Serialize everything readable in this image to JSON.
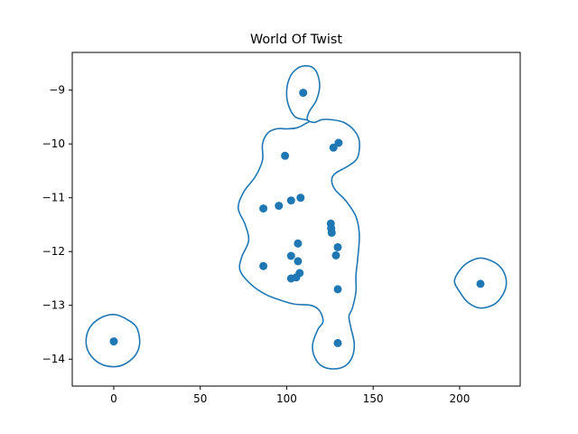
{
  "chart_data": {
    "type": "scatter",
    "title": "World Of Twist",
    "xlabel": "",
    "ylabel": "",
    "xlim": [
      -24,
      235
    ],
    "ylim": [
      -14.5,
      -8.3
    ],
    "xticks": [
      0,
      50,
      100,
      150,
      200
    ],
    "yticks": [
      -9,
      -10,
      -11,
      -12,
      -13,
      -14
    ],
    "grid": false,
    "point_color": "#1f77b4",
    "contour_color": "#1f77b4",
    "points": [
      {
        "x": 109.5,
        "y": -9.05
      },
      {
        "x": 130.0,
        "y": -9.98
      },
      {
        "x": 127.0,
        "y": -10.07
      },
      {
        "x": 99.0,
        "y": -10.22
      },
      {
        "x": 108.0,
        "y": -11.0
      },
      {
        "x": 102.5,
        "y": -11.05
      },
      {
        "x": 95.5,
        "y": -11.15
      },
      {
        "x": 86.5,
        "y": -11.2
      },
      {
        "x": 125.5,
        "y": -11.48
      },
      {
        "x": 125.7,
        "y": -11.57
      },
      {
        "x": 126.0,
        "y": -11.65
      },
      {
        "x": 106.5,
        "y": -11.85
      },
      {
        "x": 129.5,
        "y": -11.92
      },
      {
        "x": 102.5,
        "y": -12.08
      },
      {
        "x": 128.5,
        "y": -12.07
      },
      {
        "x": 106.5,
        "y": -12.18
      },
      {
        "x": 86.5,
        "y": -12.27
      },
      {
        "x": 107.5,
        "y": -12.4
      },
      {
        "x": 105.5,
        "y": -12.48
      },
      {
        "x": 102.5,
        "y": -12.5
      },
      {
        "x": 129.5,
        "y": -12.7
      },
      {
        "x": 212.0,
        "y": -12.6
      },
      {
        "x": 0.0,
        "y": -13.67
      },
      {
        "x": 129.5,
        "y": -13.7
      }
    ],
    "contours": [
      {
        "points": [
          [
            0,
            -13.17
          ],
          [
            7,
            -13.25
          ],
          [
            13,
            -13.4
          ],
          [
            15,
            -13.67
          ],
          [
            13,
            -13.9
          ],
          [
            7,
            -14.08
          ],
          [
            0,
            -14.14
          ],
          [
            -8,
            -14.08
          ],
          [
            -14,
            -13.9
          ],
          [
            -16,
            -13.67
          ],
          [
            -14,
            -13.42
          ],
          [
            -8,
            -13.24
          ]
        ]
      },
      {
        "points": [
          [
            212,
            -12.12
          ],
          [
            220,
            -12.2
          ],
          [
            225,
            -12.35
          ],
          [
            227,
            -12.58
          ],
          [
            225,
            -12.8
          ],
          [
            220,
            -12.98
          ],
          [
            212,
            -13.05
          ],
          [
            205,
            -12.95
          ],
          [
            200,
            -12.75
          ],
          [
            197,
            -12.55
          ],
          [
            200,
            -12.35
          ],
          [
            205,
            -12.2
          ]
        ]
      },
      {
        "points": [
          [
            110,
            -8.55
          ],
          [
            115,
            -8.58
          ],
          [
            118,
            -8.72
          ],
          [
            119,
            -8.95
          ],
          [
            117,
            -9.2
          ],
          [
            113,
            -9.4
          ],
          [
            112,
            -9.55
          ],
          [
            116,
            -9.6
          ],
          [
            120,
            -9.55
          ],
          [
            126,
            -9.55
          ],
          [
            133,
            -9.6
          ],
          [
            139,
            -9.75
          ],
          [
            142,
            -9.95
          ],
          [
            141,
            -10.25
          ],
          [
            136,
            -10.4
          ],
          [
            128,
            -10.55
          ],
          [
            126,
            -10.68
          ],
          [
            128,
            -10.85
          ],
          [
            134,
            -11.05
          ],
          [
            140,
            -11.35
          ],
          [
            142,
            -11.7
          ],
          [
            141,
            -12.15
          ],
          [
            140,
            -12.45
          ],
          [
            140,
            -12.75
          ],
          [
            138,
            -13.05
          ],
          [
            136,
            -13.2
          ],
          [
            137,
            -13.4
          ],
          [
            139,
            -13.7
          ],
          [
            138,
            -13.95
          ],
          [
            134,
            -14.12
          ],
          [
            127,
            -14.18
          ],
          [
            120,
            -14.12
          ],
          [
            116,
            -13.95
          ],
          [
            115,
            -13.72
          ],
          [
            118,
            -13.45
          ],
          [
            121,
            -13.3
          ],
          [
            119,
            -13.1
          ],
          [
            114,
            -13.0
          ],
          [
            105,
            -12.98
          ],
          [
            98,
            -12.92
          ],
          [
            88,
            -12.8
          ],
          [
            79,
            -12.6
          ],
          [
            73,
            -12.35
          ],
          [
            74,
            -12.1
          ],
          [
            78,
            -11.8
          ],
          [
            76,
            -11.5
          ],
          [
            72,
            -11.2
          ],
          [
            75,
            -10.9
          ],
          [
            82,
            -10.6
          ],
          [
            86,
            -10.3
          ],
          [
            86,
            -10.0
          ],
          [
            89,
            -9.8
          ],
          [
            94,
            -9.72
          ],
          [
            100,
            -9.72
          ],
          [
            106,
            -9.7
          ],
          [
            111,
            -9.62
          ],
          [
            113,
            -9.58
          ],
          [
            111,
            -9.55
          ],
          [
            105,
            -9.5
          ],
          [
            101,
            -9.28
          ],
          [
            100,
            -9.0
          ],
          [
            102,
            -8.75
          ],
          [
            106,
            -8.6
          ]
        ]
      }
    ]
  }
}
